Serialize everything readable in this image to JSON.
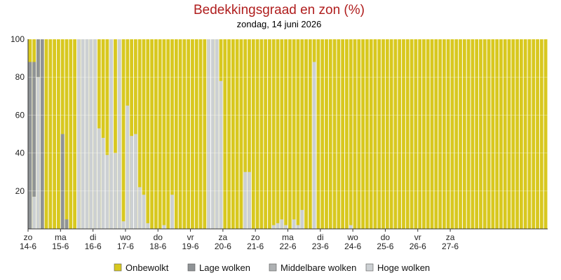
{
  "chart_data": {
    "type": "bar",
    "stacked": true,
    "title": "Bedekkingsgraad en zon (%)",
    "subtitle": "zondag, 14 juni 2026",
    "ylim": [
      0,
      100
    ],
    "yticks": [
      20,
      40,
      60,
      80,
      100
    ],
    "grid": true,
    "legend_position": "bottom",
    "colors": {
      "Onbewolkt": "#d8c81f",
      "Lage wolken": "#8f9396",
      "Middelbare wolken": "#aeb1b3",
      "Hoge wolken": "#ccd0d3"
    },
    "legend": [
      {
        "name": "Onbewolkt",
        "color": "#d8c81f"
      },
      {
        "name": "Lage wolken",
        "color": "#8f9396"
      },
      {
        "name": "Middelbare wolken",
        "color": "#aeb1b3"
      },
      {
        "name": "Hoge wolken",
        "color": "#ccd0d3"
      }
    ],
    "x_labels": [
      {
        "day": "zo",
        "date": "14-6"
      },
      {
        "day": "ma",
        "date": "15-6"
      },
      {
        "day": "di",
        "date": "16-6"
      },
      {
        "day": "wo",
        "date": "17-6"
      },
      {
        "day": "do",
        "date": "18-6"
      },
      {
        "day": "vr",
        "date": "19-6"
      },
      {
        "day": "za",
        "date": "20-6"
      },
      {
        "day": "zo",
        "date": "21-6"
      },
      {
        "day": "ma",
        "date": "22-6"
      },
      {
        "day": "di",
        "date": "23-6"
      },
      {
        "day": "wo",
        "date": "24-6"
      },
      {
        "day": "do",
        "date": "25-6"
      },
      {
        "day": "vr",
        "date": "26-6"
      },
      {
        "day": "za",
        "date": "27-6"
      }
    ],
    "bars_per_day": 8,
    "series": [
      {
        "name": "Hoge wolken",
        "values": [
          0,
          17,
          80,
          0,
          0,
          0,
          0,
          0,
          0,
          0,
          0,
          0,
          100,
          100,
          100,
          100,
          100,
          53,
          48,
          39,
          100,
          40,
          100,
          4,
          65,
          49,
          50,
          22,
          18,
          3,
          0,
          0,
          0,
          2,
          0,
          18,
          0,
          0,
          0,
          0,
          0,
          0,
          0,
          0,
          100,
          100,
          100,
          78,
          0,
          0,
          0,
          0,
          0,
          30,
          30,
          0,
          0,
          0,
          0,
          0,
          2,
          3,
          5,
          2,
          0,
          5,
          2,
          10,
          0,
          0,
          88,
          0,
          0,
          0,
          0,
          0,
          0,
          0,
          0,
          2,
          0,
          0,
          0,
          0,
          0,
          0,
          0,
          0,
          0,
          0,
          0,
          0,
          0,
          0,
          0,
          0,
          0,
          0,
          0,
          0,
          0,
          0,
          0,
          0,
          0,
          0,
          0,
          0,
          0,
          0,
          0,
          0,
          0,
          0,
          0,
          0,
          0,
          0,
          0,
          0,
          0,
          0,
          0,
          0,
          0,
          0,
          0,
          0
        ]
      },
      {
        "name": "Middelbare wolken",
        "values": [
          0,
          0,
          0,
          0,
          0,
          0,
          0,
          0,
          0,
          0,
          0,
          0,
          0,
          0,
          0,
          0,
          0,
          0,
          0,
          0,
          0,
          0,
          0,
          0,
          0,
          0,
          0,
          0,
          0,
          0,
          0,
          0,
          0,
          0,
          0,
          0,
          0,
          0,
          0,
          0,
          0,
          0,
          0,
          0,
          0,
          0,
          0,
          0,
          0,
          0,
          0,
          0,
          0,
          0,
          0,
          0,
          0,
          0,
          0,
          0,
          0,
          0,
          0,
          0,
          0,
          0,
          0,
          0,
          0,
          0,
          0,
          0,
          0,
          0,
          0,
          0,
          0,
          0,
          0,
          0,
          0,
          0,
          0,
          0,
          0,
          0,
          0,
          0,
          0,
          0,
          0,
          0,
          0,
          0,
          0,
          0,
          0,
          0,
          0,
          0,
          0,
          0,
          0,
          0,
          0,
          0,
          0,
          0,
          0,
          0,
          0,
          0,
          0,
          0,
          0,
          0,
          0,
          0,
          0,
          0,
          0,
          0,
          0,
          0,
          0,
          0,
          0,
          0
        ]
      },
      {
        "name": "Lage wolken",
        "values": [
          88,
          71,
          20,
          100,
          0,
          0,
          0,
          0,
          50,
          5,
          0,
          0,
          0,
          0,
          0,
          0,
          0,
          0,
          0,
          0,
          0,
          0,
          0,
          0,
          0,
          0,
          0,
          0,
          0,
          0,
          0,
          0,
          0,
          0,
          0,
          0,
          0,
          0,
          0,
          0,
          0,
          0,
          0,
          0,
          0,
          0,
          0,
          0,
          0,
          0,
          0,
          0,
          0,
          0,
          0,
          0,
          0,
          0,
          0,
          0,
          0,
          0,
          0,
          0,
          0,
          0,
          0,
          0,
          0,
          0,
          0,
          0,
          0,
          0,
          0,
          0,
          0,
          0,
          0,
          0,
          0,
          0,
          0,
          0,
          0,
          0,
          0,
          0,
          0,
          0,
          0,
          0,
          0,
          0,
          0,
          0,
          0,
          0,
          0,
          0,
          0,
          0,
          0,
          0,
          0,
          0,
          0,
          0,
          0,
          0,
          0,
          0,
          0,
          0,
          0,
          0,
          0,
          0,
          0,
          0,
          0,
          0,
          0,
          0,
          0,
          0,
          0,
          0
        ]
      }
    ]
  }
}
